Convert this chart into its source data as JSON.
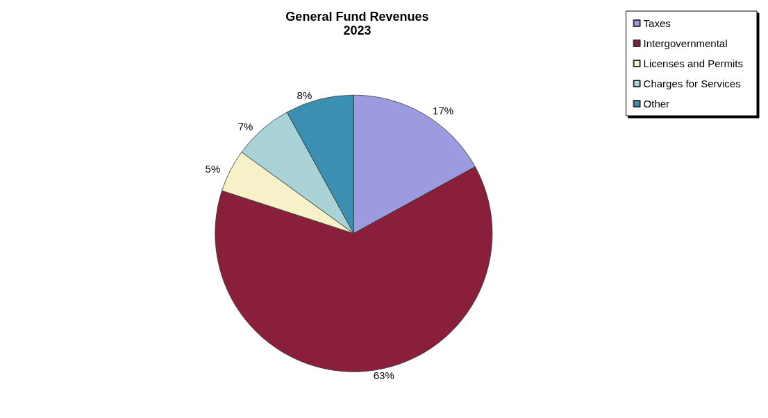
{
  "chart_data": {
    "type": "pie",
    "title": "General Fund Revenues",
    "subtitle": "2023",
    "categories": [
      "Taxes",
      "Intergovernmental",
      "Licenses and Permits",
      "Charges for Services",
      "Other"
    ],
    "values": [
      17,
      63,
      5,
      7,
      8
    ],
    "colors": [
      "#9c9be0",
      "#8a1f3c",
      "#f7f1c9",
      "#a9d3d6",
      "#3b8fb0"
    ],
    "value_labels": [
      "17%",
      "63%",
      "5%",
      "7%",
      "8%"
    ],
    "legend": "top right"
  }
}
